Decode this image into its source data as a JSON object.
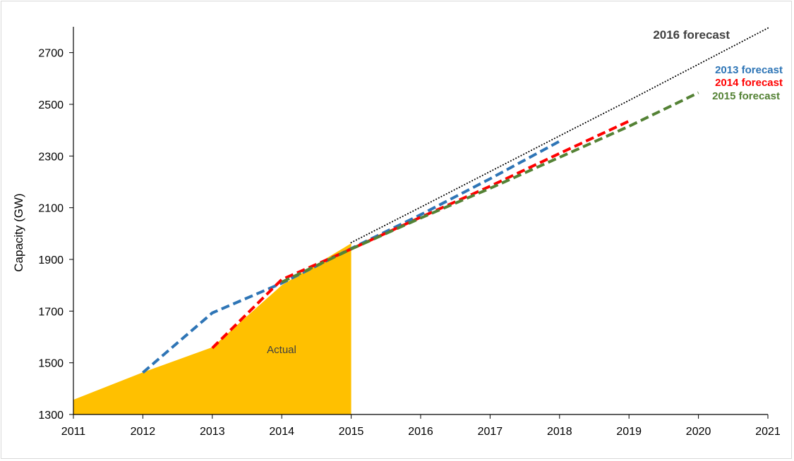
{
  "chart_data": {
    "type": "line",
    "title": "",
    "xlabel": "",
    "ylabel": "Capacity (GW)",
    "xlim": [
      2011,
      2021
    ],
    "ylim": [
      1300,
      2800
    ],
    "x_ticks": [
      2011,
      2012,
      2013,
      2014,
      2015,
      2016,
      2017,
      2018,
      2019,
      2020,
      2021
    ],
    "y_ticks": [
      1300,
      1500,
      1700,
      1900,
      2100,
      2300,
      2500,
      2700
    ],
    "grid": false,
    "legend": "none",
    "area": {
      "name": "Actual",
      "color": "#ffc000",
      "x": [
        2011,
        2012,
        2013,
        2014,
        2015
      ],
      "values": [
        1357,
        1463,
        1560,
        1800,
        1962
      ]
    },
    "series": [
      {
        "name": "2013 forecast",
        "color": "#2e75b6",
        "style": "dashed",
        "x": [
          2012,
          2013,
          2014,
          2015,
          2016,
          2017,
          2018
        ],
        "values": [
          1462,
          1693,
          1808,
          1942,
          2073,
          2212,
          2357
        ]
      },
      {
        "name": "2014 forecast",
        "color": "#ff0000",
        "style": "dashed",
        "x": [
          2013,
          2014,
          2015,
          2016,
          2017,
          2018,
          2019
        ],
        "values": [
          1557,
          1822,
          1940,
          2063,
          2183,
          2310,
          2435
        ]
      },
      {
        "name": "2015 forecast",
        "color": "#548235",
        "style": "dashed",
        "x": [
          2014,
          2015,
          2016,
          2017,
          2018,
          2019,
          2020
        ],
        "values": [
          1812,
          1940,
          2060,
          2175,
          2295,
          2415,
          2545
        ]
      },
      {
        "name": "2016 forecast",
        "color": "#000000",
        "style": "dotted",
        "x": [
          2015,
          2016,
          2017,
          2018,
          2019,
          2020,
          2021
        ],
        "values": [
          1965,
          2102,
          2240,
          2378,
          2515,
          2655,
          2795
        ]
      }
    ]
  }
}
